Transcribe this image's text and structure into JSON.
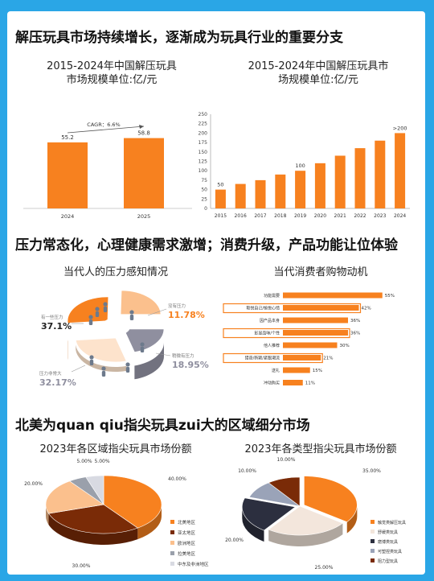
{
  "section1": {
    "heading": "解压玩具市场持续增长，逐渐成为玩具行业的重要分支"
  },
  "section2": {
    "heading": "压力常态化，心理健康需求激增；消费升级，产品功能让位体验"
  },
  "section3": {
    "heading": "北美为quan qiu指尖玩具zui大的区域细分市场"
  },
  "colors": {
    "orange": "#f7811f",
    "dark_brown": "#7a2b07",
    "light_peach": "#fbc08d",
    "grey": "#8f8f9f",
    "navy": "#2c2f3f",
    "frame_blue": "#2aa6e6"
  },
  "chart_data": [
    {
      "type": "bar",
      "title_line1": "2015-2024年中国解压玩具",
      "title_line2": "市场规模单位:亿/元",
      "categories": [
        "2024",
        "2025"
      ],
      "values": [
        55.2,
        58.8
      ],
      "value_labels": [
        "55.2",
        "58.8"
      ],
      "annotation": "CAGR：6.6%",
      "ylim": [
        0,
        70
      ]
    },
    {
      "type": "bar",
      "title_line1": "2015-2024年中国解压玩具市",
      "title_line2": "场规模单位:亿/元",
      "categories": [
        "2015",
        "2016",
        "2017",
        "2018",
        "2019",
        "2020",
        "2021",
        "2022",
        "2023",
        "2024"
      ],
      "values": [
        50,
        65,
        75,
        90,
        100,
        120,
        140,
        160,
        180,
        200
      ],
      "point_labels": [
        {
          "index": 0,
          "text": "50"
        },
        {
          "index": 4,
          "text": "100"
        },
        {
          "index": 9,
          "text": ">200"
        }
      ],
      "yticks": [
        "0",
        "25",
        "50",
        "75",
        "100",
        "125",
        "150",
        "175",
        "200",
        "225",
        "250"
      ],
      "ylim": [
        0,
        250
      ]
    },
    {
      "type": "pie",
      "title": "当代人的压力感知情况",
      "slices": [
        {
          "label": "有一些压力",
          "value": 37.1,
          "display": "37.1%"
        },
        {
          "label": "没有压力",
          "value": 11.78,
          "display": "11.78%"
        },
        {
          "label": "稍微有压力",
          "value": 18.95,
          "display": "18.95%"
        },
        {
          "label": "压力非常大",
          "value": 32.17,
          "display": "32.17%"
        }
      ]
    },
    {
      "type": "bar",
      "title": "当代消费者购物动机",
      "categories": [
        "功能需要",
        "取悦自己/愉悦心情",
        "因产品本身",
        "彰显品味/个性",
        "他人推荐",
        "猎奇/新颖/紧跟潮流",
        "送礼",
        "冲动购买"
      ],
      "values": [
        55,
        42,
        36,
        36,
        30,
        21,
        15,
        11
      ],
      "value_labels": [
        "55%",
        "42%",
        "36%",
        "36%",
        "30%",
        "21%",
        "15%",
        "11%"
      ],
      "highlighted": [
        1,
        3,
        5
      ],
      "xlim": [
        0,
        60
      ]
    },
    {
      "type": "pie",
      "title": "2023年各区域指尖玩具市场份额",
      "slices": [
        {
          "label": "北美地区",
          "value": 40.0,
          "display": "40.00%"
        },
        {
          "label": "亚太地区",
          "value": 30.0,
          "display": "30.00%"
        },
        {
          "label": "欧洲地区",
          "value": 20.0,
          "display": "20.00%"
        },
        {
          "label": "拉美地区",
          "value": 5.0,
          "display": "5.00%"
        },
        {
          "label": "中东及非洲地区",
          "value": 5.0,
          "display": "5.00%"
        }
      ]
    },
    {
      "type": "pie",
      "title": "2023年各类型指尖玩具市场份额",
      "slices": [
        {
          "label": "触觉类解压玩具",
          "value": 35.0,
          "display": "35.00%"
        },
        {
          "label": "舒缓类玩具",
          "value": 25.0,
          "display": "25.00%"
        },
        {
          "label": "磨博类玩具",
          "value": 20.0,
          "display": "20.00%"
        },
        {
          "label": "可塑捏类玩具",
          "value": 10.0,
          "display": "10.00%"
        },
        {
          "label": "阻力型玩具",
          "value": 10.0,
          "display": "10.00%"
        }
      ]
    }
  ]
}
